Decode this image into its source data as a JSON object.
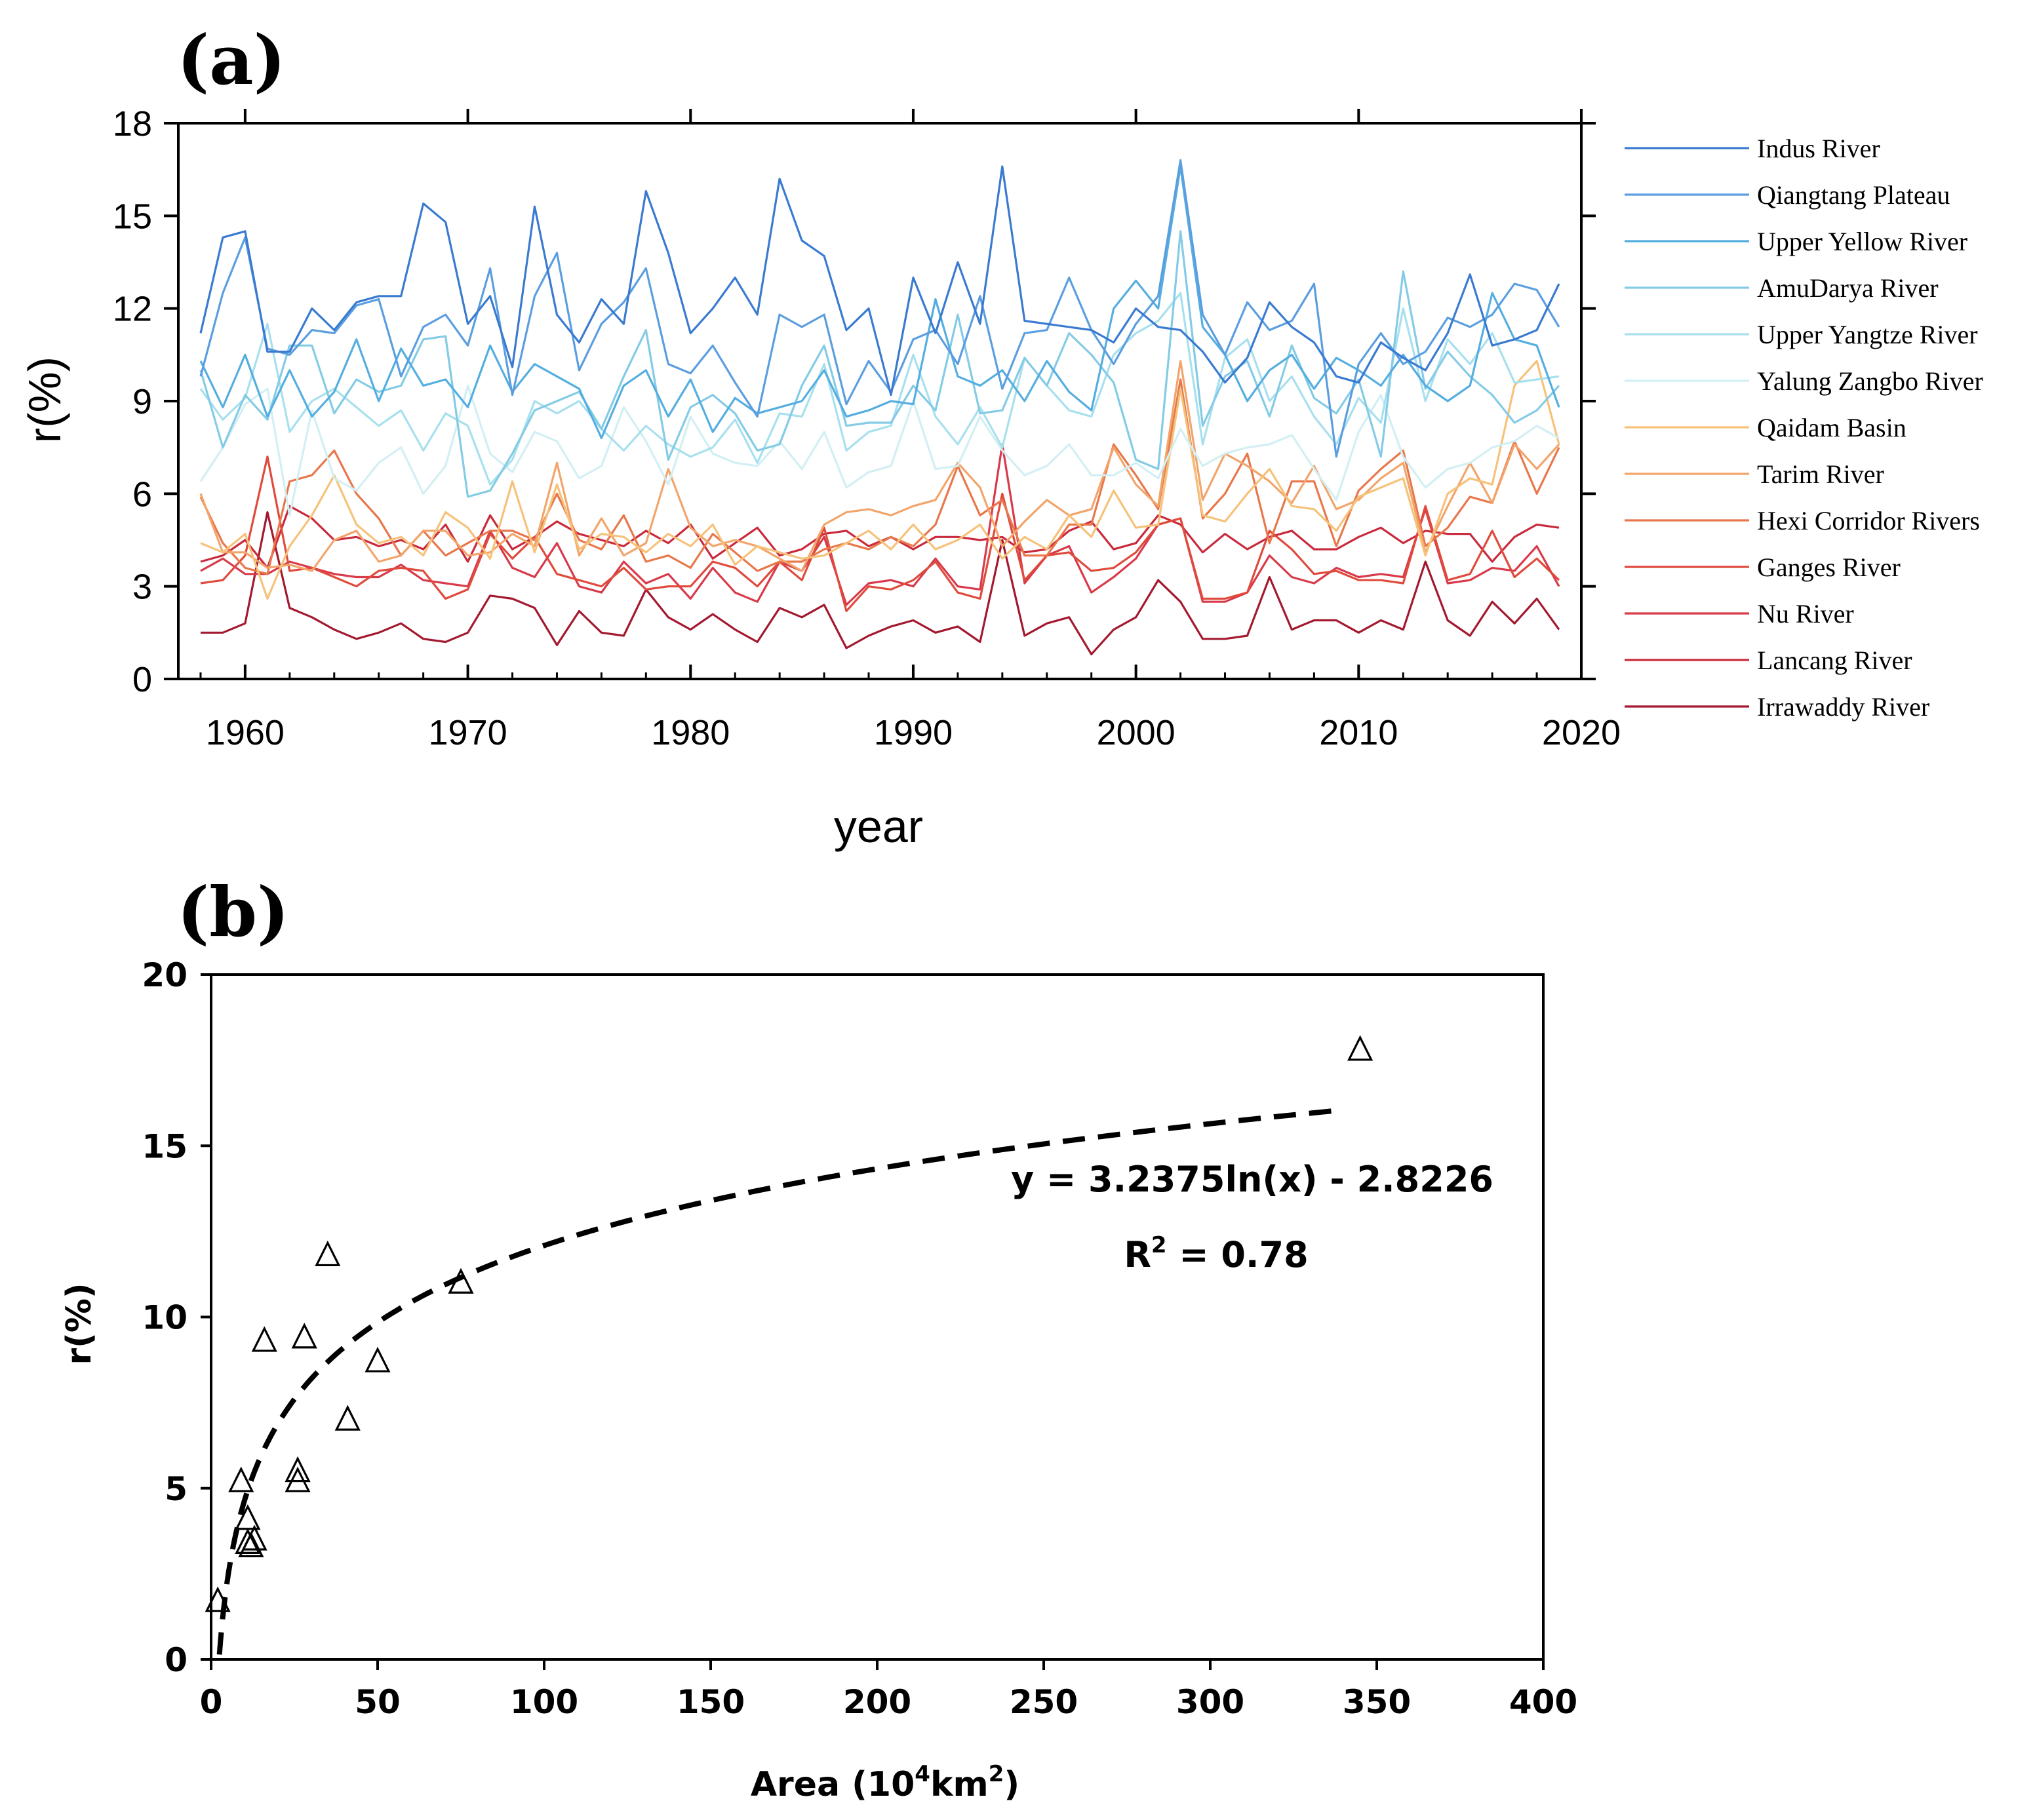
{
  "chart_data": [
    {
      "panel": "(a)",
      "type": "line",
      "xlabel": "year",
      "ylabel": "r(%)",
      "xlim": [
        1957,
        2020
      ],
      "ylim": [
        0,
        18
      ],
      "xticks": [
        1960,
        1970,
        1980,
        1990,
        2000,
        2010,
        2020
      ],
      "yticks": [
        0,
        3,
        6,
        9,
        12,
        15,
        18
      ],
      "legend_position": "right",
      "x": [
        1958,
        1959,
        1960,
        1961,
        1962,
        1963,
        1964,
        1965,
        1966,
        1967,
        1968,
        1969,
        1970,
        1971,
        1972,
        1973,
        1974,
        1975,
        1976,
        1977,
        1978,
        1979,
        1980,
        1981,
        1982,
        1983,
        1984,
        1985,
        1986,
        1987,
        1988,
        1989,
        1990,
        1991,
        1992,
        1993,
        1994,
        1995,
        1996,
        1997,
        1998,
        1999,
        2000,
        2001,
        2002,
        2003,
        2004,
        2005,
        2006,
        2007,
        2008,
        2009,
        2010,
        2011,
        2012,
        2013,
        2014,
        2015,
        2016,
        2017,
        2018,
        2019
      ],
      "series": [
        {
          "name": "Indus River",
          "color": "#3a7ad0",
          "values": [
            11.2,
            14.3,
            14.5,
            10.6,
            10.6,
            12.0,
            11.3,
            12.2,
            12.4,
            12.4,
            15.4,
            14.8,
            11.5,
            12.4,
            10.1,
            15.3,
            11.8,
            10.9,
            12.3,
            11.5,
            15.8,
            13.8,
            11.2,
            12.0,
            13.0,
            11.8,
            16.2,
            14.2,
            13.7,
            11.3,
            12.0,
            9.2,
            13.0,
            11.2,
            13.5,
            11.5,
            16.6,
            11.6,
            11.5,
            11.4,
            11.3,
            10.9,
            12.0,
            11.4,
            11.3,
            10.6,
            9.6,
            10.4,
            12.2,
            11.4,
            10.9,
            9.8,
            9.6,
            10.9,
            10.4,
            10.0,
            11.2,
            13.1,
            10.8,
            11.0,
            11.3,
            12.8
          ]
        },
        {
          "name": "Qiangtang Plateau",
          "color": "#5b9ee0",
          "values": [
            9.8,
            12.5,
            14.3,
            10.7,
            10.5,
            11.3,
            11.2,
            12.1,
            12.3,
            9.8,
            11.4,
            11.8,
            10.8,
            13.3,
            9.2,
            12.4,
            13.8,
            10.0,
            11.5,
            12.2,
            13.3,
            10.2,
            9.9,
            10.8,
            9.6,
            8.5,
            11.8,
            11.4,
            11.8,
            8.9,
            10.3,
            9.3,
            11.0,
            11.3,
            10.2,
            12.4,
            9.4,
            11.2,
            11.3,
            13.0,
            11.3,
            10.2,
            11.5,
            12.4,
            16.8,
            11.8,
            10.5,
            12.2,
            11.3,
            11.6,
            12.8,
            7.2,
            10.2,
            11.2,
            10.2,
            10.6,
            11.7,
            11.4,
            11.8,
            12.8,
            12.6,
            11.4
          ]
        },
        {
          "name": "Upper Yellow River",
          "color": "#55aee0",
          "values": [
            10.3,
            8.8,
            10.5,
            8.5,
            10.0,
            8.5,
            9.3,
            11.0,
            9.0,
            10.7,
            9.5,
            9.7,
            8.8,
            10.8,
            9.3,
            10.2,
            9.8,
            9.4,
            7.8,
            9.5,
            10.0,
            8.5,
            9.7,
            8.0,
            9.1,
            8.6,
            8.8,
            9.0,
            10.0,
            8.5,
            8.7,
            9.0,
            8.9,
            12.3,
            9.8,
            9.5,
            10.0,
            9.0,
            10.3,
            9.3,
            8.7,
            12.0,
            12.9,
            12.0,
            16.6,
            11.4,
            10.5,
            9.0,
            10.0,
            10.5,
            9.4,
            10.4,
            10.0,
            9.5,
            10.5,
            9.5,
            9.0,
            9.5,
            12.5,
            11.0,
            10.8,
            8.8
          ]
        },
        {
          "name": "AmuDarya River",
          "color": "#84cbe6",
          "values": [
            10.0,
            7.5,
            9.2,
            8.4,
            10.8,
            10.8,
            8.6,
            9.7,
            9.3,
            9.5,
            11.0,
            11.1,
            5.9,
            6.1,
            7.3,
            8.7,
            9.0,
            9.3,
            8.1,
            9.8,
            11.3,
            7.1,
            8.8,
            9.2,
            8.6,
            7.4,
            7.6,
            9.5,
            10.8,
            8.2,
            8.3,
            8.3,
            9.5,
            8.7,
            11.8,
            8.6,
            8.7,
            10.4,
            9.5,
            11.2,
            10.5,
            9.6,
            7.1,
            6.8,
            14.5,
            8.2,
            9.8,
            10.3,
            8.5,
            10.8,
            9.1,
            8.6,
            9.7,
            7.2,
            13.2,
            9.4,
            10.6,
            9.8,
            9.2,
            8.3,
            8.7,
            9.5
          ]
        },
        {
          "name": "Upper Yangtze River",
          "color": "#a8e0ee",
          "values": [
            9.4,
            8.4,
            9.1,
            11.5,
            8.0,
            9.0,
            9.4,
            8.8,
            8.2,
            8.7,
            7.4,
            8.6,
            8.2,
            6.3,
            7.1,
            9.0,
            8.6,
            9.0,
            8.1,
            7.4,
            8.2,
            7.6,
            7.2,
            7.5,
            8.4,
            7.0,
            8.6,
            8.5,
            10.2,
            7.4,
            8.0,
            8.2,
            10.5,
            8.5,
            7.6,
            8.8,
            7.5,
            10.4,
            9.5,
            8.7,
            8.5,
            10.5,
            11.2,
            11.6,
            12.5,
            7.6,
            10.4,
            11.0,
            9.0,
            9.8,
            8.5,
            7.6,
            9.1,
            8.3,
            12.0,
            9.0,
            11.0,
            10.2,
            11.2,
            9.6,
            9.7,
            9.8
          ]
        },
        {
          "name": "Yalung Zangbo River",
          "color": "#d2eff3",
          "values": [
            6.4,
            7.5,
            8.9,
            9.4,
            5.3,
            8.7,
            6.5,
            6.1,
            7.0,
            7.5,
            6.0,
            6.9,
            9.5,
            7.3,
            6.7,
            8.0,
            7.7,
            6.5,
            6.9,
            8.8,
            7.7,
            6.3,
            8.5,
            7.3,
            7.0,
            6.9,
            7.7,
            6.8,
            8.0,
            6.2,
            6.7,
            6.9,
            9.0,
            6.8,
            6.9,
            8.5,
            7.4,
            6.6,
            6.9,
            7.6,
            6.6,
            6.6,
            7.0,
            6.5,
            8.1,
            6.9,
            7.3,
            7.5,
            7.6,
            7.9,
            6.8,
            5.8,
            8.0,
            9.2,
            7.2,
            6.2,
            6.8,
            7.0,
            7.5,
            7.7,
            8.2,
            7.8
          ]
        },
        {
          "name": "Qaidam Basin",
          "color": "#f6c27a",
          "values": [
            4.4,
            4.1,
            4.7,
            2.6,
            4.3,
            5.3,
            6.6,
            5.0,
            4.4,
            4.6,
            4.0,
            5.4,
            4.9,
            3.9,
            6.4,
            4.1,
            6.3,
            4.2,
            4.7,
            4.6,
            4.1,
            4.7,
            4.3,
            5.0,
            3.7,
            4.3,
            4.1,
            3.9,
            4.0,
            4.4,
            4.8,
            4.2,
            5.0,
            4.2,
            4.5,
            5.0,
            3.9,
            4.6,
            4.2,
            5.3,
            4.6,
            6.1,
            4.9,
            5.0,
            9.4,
            5.3,
            5.1,
            6.0,
            6.8,
            5.6,
            5.5,
            4.8,
            5.9,
            6.2,
            6.5,
            4.0,
            6.0,
            6.5,
            6.3,
            9.5,
            10.3,
            7.6
          ]
        },
        {
          "name": "Tarim River",
          "color": "#f2a56b",
          "values": [
            6.0,
            4.1,
            4.1,
            3.6,
            3.7,
            3.5,
            4.5,
            4.8,
            3.8,
            4.0,
            4.8,
            4.8,
            4.0,
            4.1,
            4.7,
            4.3,
            7.0,
            4.0,
            5.2,
            4.0,
            4.4,
            6.8,
            4.9,
            4.3,
            4.5,
            4.3,
            3.9,
            3.5,
            5.0,
            5.4,
            5.5,
            5.3,
            5.6,
            5.8,
            7.0,
            6.2,
            4.3,
            5.1,
            5.8,
            5.3,
            5.5,
            7.5,
            6.3,
            5.6,
            10.3,
            5.8,
            7.3,
            6.9,
            6.4,
            5.7,
            6.9,
            5.5,
            5.8,
            6.5,
            7.0,
            4.1,
            5.6,
            7.0,
            5.7,
            7.6,
            6.8,
            7.6
          ]
        },
        {
          "name": "Hexi Corridor Rivers",
          "color": "#e8774b",
          "values": [
            5.9,
            4.4,
            3.6,
            3.4,
            6.4,
            6.6,
            7.4,
            6.0,
            5.2,
            4.0,
            4.8,
            4.0,
            4.4,
            4.8,
            4.8,
            4.5,
            6.0,
            4.5,
            4.2,
            5.3,
            3.8,
            4.0,
            3.6,
            4.7,
            4.1,
            3.5,
            3.8,
            3.8,
            4.2,
            4.4,
            4.2,
            4.6,
            4.3,
            5.0,
            6.9,
            5.3,
            5.8,
            4.0,
            4.0,
            5.0,
            5.0,
            7.6,
            6.6,
            5.5,
            9.7,
            5.2,
            6.0,
            7.3,
            4.4,
            6.4,
            6.4,
            4.3,
            6.1,
            6.8,
            7.4,
            4.3,
            4.9,
            5.9,
            5.7,
            7.7,
            6.0,
            7.5
          ]
        },
        {
          "name": "Ganges River",
          "color": "#e04a3c",
          "values": [
            3.1,
            3.2,
            4.0,
            7.2,
            3.5,
            3.6,
            3.3,
            3.0,
            3.5,
            3.6,
            3.5,
            2.6,
            2.9,
            4.7,
            3.9,
            4.6,
            3.4,
            3.2,
            3.0,
            3.6,
            2.9,
            3.0,
            3.0,
            3.8,
            3.6,
            3.0,
            3.8,
            3.2,
            4.9,
            2.2,
            3.0,
            2.9,
            3.2,
            3.8,
            2.8,
            2.6,
            6.0,
            3.2,
            4.0,
            4.1,
            3.5,
            3.6,
            4.1,
            5.0,
            5.2,
            2.6,
            2.6,
            2.8,
            4.8,
            4.2,
            3.4,
            3.5,
            3.2,
            3.2,
            3.1,
            5.6,
            3.2,
            3.4,
            4.8,
            3.3,
            3.9,
            3.2
          ]
        },
        {
          "name": "Nu River",
          "color": "#d83a4a",
          "values": [
            3.5,
            3.9,
            3.4,
            3.4,
            3.8,
            3.6,
            3.4,
            3.3,
            3.3,
            3.7,
            3.2,
            3.1,
            3.0,
            4.8,
            3.6,
            3.3,
            4.4,
            3.0,
            2.8,
            3.8,
            3.1,
            3.4,
            2.6,
            3.6,
            2.8,
            2.5,
            3.8,
            3.5,
            4.6,
            2.4,
            3.1,
            3.2,
            3.0,
            3.9,
            3.0,
            2.9,
            7.6,
            3.1,
            4.0,
            4.3,
            2.8,
            3.3,
            3.9,
            5.0,
            5.2,
            2.5,
            2.5,
            2.8,
            4.0,
            3.3,
            3.1,
            3.6,
            3.3,
            3.4,
            3.3,
            5.5,
            3.1,
            3.2,
            3.6,
            3.5,
            4.3,
            3.0
          ]
        },
        {
          "name": "Lancang River",
          "color": "#c92a3c",
          "values": [
            3.8,
            4.0,
            4.5,
            3.6,
            5.6,
            5.2,
            4.5,
            4.6,
            4.3,
            4.5,
            4.2,
            5.0,
            3.8,
            5.3,
            4.2,
            4.6,
            5.1,
            4.7,
            4.5,
            4.3,
            4.8,
            4.4,
            5.0,
            3.9,
            4.4,
            4.9,
            4.0,
            4.2,
            4.7,
            4.8,
            4.3,
            4.6,
            4.2,
            4.6,
            4.6,
            4.5,
            4.6,
            4.1,
            4.2,
            4.8,
            5.1,
            4.2,
            4.4,
            5.3,
            5.0,
            4.1,
            4.7,
            4.2,
            4.6,
            4.8,
            4.2,
            4.2,
            4.6,
            4.9,
            4.4,
            4.8,
            4.7,
            4.7,
            3.8,
            4.6,
            5.0,
            4.9
          ]
        },
        {
          "name": "Irrawaddy River",
          "color": "#a3192f",
          "values": [
            1.5,
            1.5,
            1.8,
            5.4,
            2.3,
            2.0,
            1.6,
            1.3,
            1.5,
            1.8,
            1.3,
            1.2,
            1.5,
            2.7,
            2.6,
            2.3,
            1.1,
            2.2,
            1.5,
            1.4,
            2.9,
            2.0,
            1.6,
            2.1,
            1.6,
            1.2,
            2.3,
            2.0,
            2.4,
            1.0,
            1.4,
            1.7,
            1.9,
            1.5,
            1.7,
            1.2,
            4.5,
            1.4,
            1.8,
            2.0,
            0.8,
            1.6,
            2.0,
            3.2,
            2.5,
            1.3,
            1.3,
            1.4,
            3.3,
            1.6,
            1.9,
            1.9,
            1.5,
            1.9,
            1.6,
            3.8,
            1.9,
            1.4,
            2.5,
            1.8,
            2.6,
            1.6
          ]
        }
      ]
    },
    {
      "panel": "(b)",
      "type": "scatter",
      "xlabel_prefix": "Area (10",
      "xlabel_sup1": "4",
      "xlabel_mid": "km",
      "xlabel_sup2": "2",
      "xlabel_suffix": ")",
      "ylabel": "r(%)",
      "xlim": [
        0,
        400
      ],
      "ylim": [
        0,
        20
      ],
      "xticks": [
        0,
        50,
        100,
        150,
        200,
        250,
        300,
        350,
        400
      ],
      "yticks": [
        0,
        5,
        10,
        15,
        20
      ],
      "marker": "triangle",
      "points": [
        {
          "x": 2,
          "y": 1.7
        },
        {
          "x": 9,
          "y": 5.2
        },
        {
          "x": 11,
          "y": 4.1
        },
        {
          "x": 11,
          "y": 3.4
        },
        {
          "x": 12,
          "y": 3.3
        },
        {
          "x": 13,
          "y": 3.5
        },
        {
          "x": 16,
          "y": 9.3
        },
        {
          "x": 26,
          "y": 5.5
        },
        {
          "x": 26,
          "y": 5.2
        },
        {
          "x": 28,
          "y": 9.4
        },
        {
          "x": 35,
          "y": 11.8
        },
        {
          "x": 41,
          "y": 7.0
        },
        {
          "x": 50,
          "y": 8.7
        },
        {
          "x": 75,
          "y": 11.0
        },
        {
          "x": 345,
          "y": 17.8
        }
      ],
      "fit": {
        "type": "logarithmic",
        "a": 3.2375,
        "b": -2.8226,
        "x_range": [
          2.5,
          340
        ],
        "style": "dashed",
        "equation_label": "y = 3.2375ln(x) - 2.8226",
        "r2_label": "R",
        "r2_sup": "2",
        "r2_value": " = 0.78"
      }
    }
  ]
}
